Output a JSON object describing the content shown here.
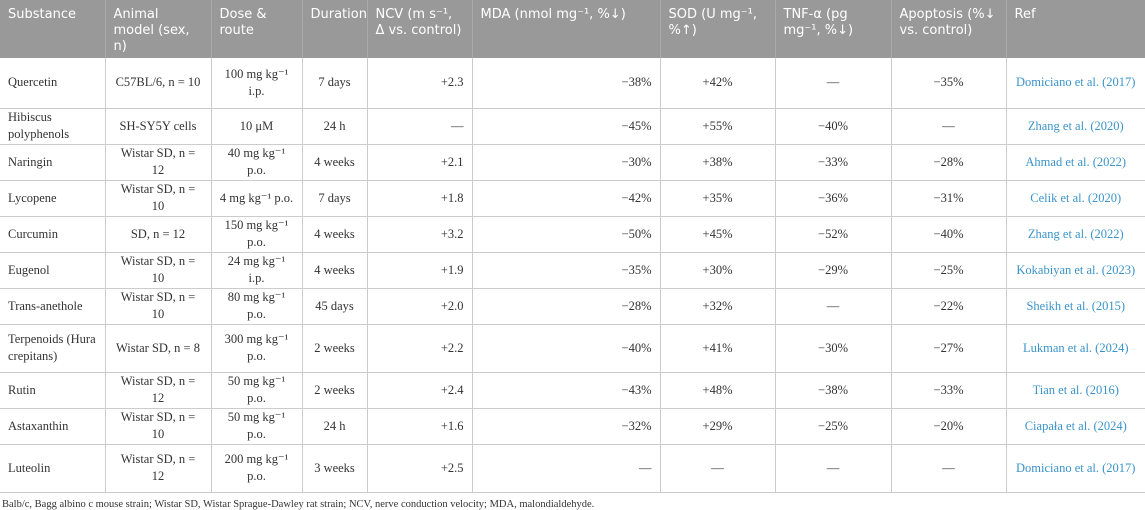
{
  "headers": [
    "Substance",
    "Animal model (sex, n)",
    "Dose & route",
    "Duration",
    "NCV (m s⁻¹, Δ vs. control)",
    "MDA (nmol mg⁻¹, %↓)",
    "SOD (U mg⁻¹, %↑)",
    "TNF-α (pg mg⁻¹, %↓)",
    "Apoptosis (%↓ vs. control)",
    "Ref"
  ],
  "rows": [
    [
      "Quercetin",
      "C57BL/6, n = 10",
      "100 mg kg⁻¹ i.p.",
      "7 days",
      "+2.3",
      "−38%",
      "+42%",
      "—",
      "−35%",
      "Domiciano et al. (2017)"
    ],
    [
      "Hibiscus polyphenols",
      "SH-SY5Y cells",
      "10 μM",
      "24 h",
      "—",
      "−45%",
      "+55%",
      "−40%",
      "—",
      "Zhang et al. (2020)"
    ],
    [
      "Naringin",
      "Wistar SD, n = 12",
      "40 mg kg⁻¹ p.o.",
      "4 weeks",
      "+2.1",
      "−30%",
      "+38%",
      "−33%",
      "−28%",
      "Ahmad et al. (2022)"
    ],
    [
      "Lycopene",
      "Wistar SD, n = 10",
      "4 mg kg⁻¹ p.o.",
      "7 days",
      "+1.8",
      "−42%",
      "+35%",
      "−36%",
      "−31%",
      "Celik et al. (2020)"
    ],
    [
      "Curcumin",
      "SD, n = 12",
      "150 mg kg⁻¹ p.o.",
      "4 weeks",
      "+3.2",
      "−50%",
      "+45%",
      "−52%",
      "−40%",
      "Zhang et al. (2022)"
    ],
    [
      "Eugenol",
      "Wistar SD, n = 10",
      "24 mg kg⁻¹ i.p.",
      "4 weeks",
      "+1.9",
      "−35%",
      "+30%",
      "−29%",
      "−25%",
      "Kokabiyan et al. (2023)"
    ],
    [
      "Trans-anethole",
      "Wistar SD, n = 10",
      "80 mg kg⁻¹ p.o.",
      "45 days",
      "+2.0",
      "−28%",
      "+32%",
      "—",
      "−22%",
      "Sheikh et al. (2015)"
    ],
    [
      "Terpenoids (Hura crepitans)",
      "Wistar SD, n = 8",
      "300 mg kg⁻¹ p.o.",
      "2 weeks",
      "+2.2",
      "−40%",
      "+41%",
      "−30%",
      "−27%",
      "Lukman et al. (2024)"
    ],
    [
      "Rutin",
      "Wistar SD, n = 12",
      "50 mg kg⁻¹ p.o.",
      "2 weeks",
      "+2.4",
      "−43%",
      "+48%",
      "−38%",
      "−33%",
      "Tian et al. (2016)"
    ],
    [
      "Astaxanthin",
      "Wistar SD, n = 10",
      "50 mg kg⁻¹ p.o.",
      "24 h",
      "+1.6",
      "−32%",
      "+29%",
      "−25%",
      "−20%",
      "Ciapała et al. (2024)"
    ],
    [
      "Luteolin",
      "Wistar SD, n = 12",
      "200 mg kg⁻¹ p.o.",
      "3 weeks",
      "+2.5",
      "—",
      "—",
      "—",
      "—",
      "Domiciano et al. (2017)"
    ]
  ],
  "footnote": "Balb/c, Bagg albino c mouse strain; Wistar SD, Wistar Sprague-Dawley rat strain; NCV, nerve conduction velocity; MDA, malondialdehyde.",
  "colors": {
    "header_bg": "#999999",
    "link": "#3a93c9"
  }
}
